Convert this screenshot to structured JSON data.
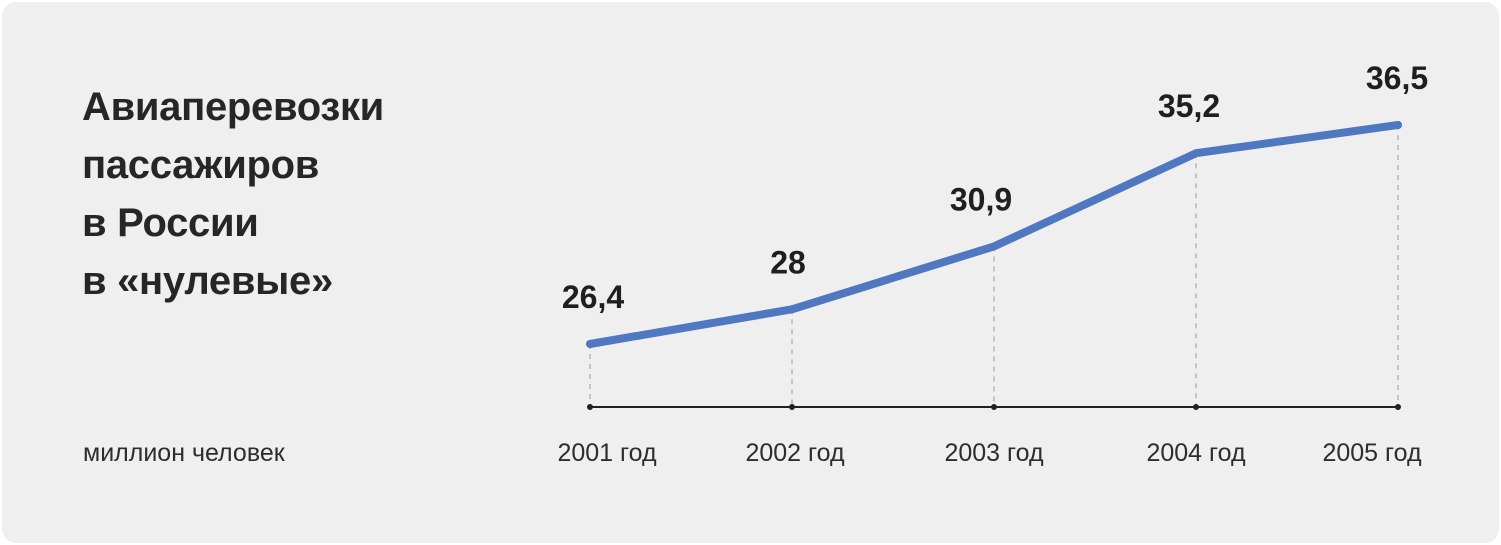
{
  "title_lines": [
    "Авиаперевозки",
    "пассажиров",
    "в России",
    "в «нулевые»"
  ],
  "unit_label": "миллион человек",
  "colors": {
    "background": "#efefef",
    "line": "#4f78c0",
    "axis": "#222222",
    "guide": "#b5b5b5"
  },
  "chart_data": {
    "type": "line",
    "categories": [
      "2001 год",
      "2002 год",
      "2003 год",
      "2004 год",
      "2005 год"
    ],
    "values": [
      26.4,
      28,
      30.9,
      35.2,
      36.5
    ],
    "value_labels": [
      "26,4",
      "28",
      "30,9",
      "35,2",
      "36,5"
    ],
    "ylabel": "миллион человек",
    "grid": false,
    "legend": "none"
  }
}
